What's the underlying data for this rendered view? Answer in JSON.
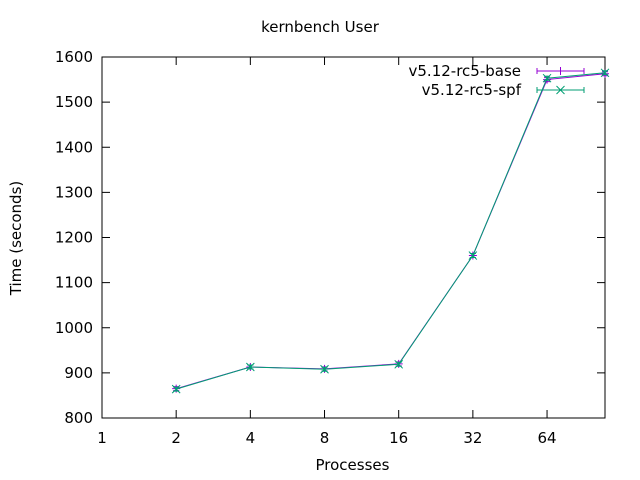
{
  "chart_data": {
    "type": "line",
    "title": "kernbench User",
    "xlabel": "Processes",
    "ylabel": "Time (seconds)",
    "x_scale": "log2",
    "xlim": [
      1,
      110
    ],
    "ylim": [
      800,
      1600
    ],
    "x_ticks": [
      1,
      2,
      4,
      8,
      16,
      32,
      64
    ],
    "x_tick_labels": [
      "1",
      "2",
      "4",
      "8",
      "16",
      "32",
      "64"
    ],
    "y_ticks": [
      800,
      900,
      1000,
      1100,
      1200,
      1300,
      1400,
      1500,
      1600
    ],
    "y_tick_labels": [
      "800",
      "900",
      "1000",
      "1100",
      "1200",
      "1300",
      "1400",
      "1500",
      "1600"
    ],
    "grid": false,
    "legend_position": "top-right",
    "x": [
      2,
      4,
      8,
      16,
      32,
      64,
      110
    ],
    "series": [
      {
        "name": "v5.12-rc5-base",
        "color": "#9400d3",
        "marker": "plus",
        "errorbars": true,
        "values": [
          865,
          913,
          909,
          920,
          1160,
          1550,
          1563
        ]
      },
      {
        "name": "v5.12-rc5-spf",
        "color": "#009e73",
        "marker": "cross",
        "errorbars": true,
        "values": [
          864,
          913,
          908,
          919,
          1160,
          1553,
          1565
        ]
      }
    ]
  }
}
